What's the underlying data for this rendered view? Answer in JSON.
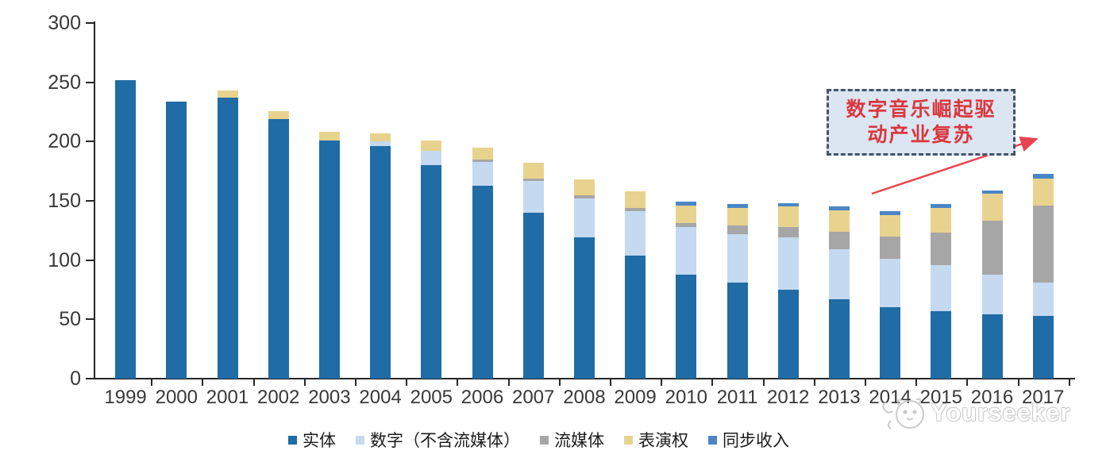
{
  "page": {
    "background": "#ffffff"
  },
  "chart_data": {
    "type": "bar",
    "stacked": true,
    "title": "",
    "xlabel": "",
    "ylabel": "",
    "categories": [
      "1999",
      "2000",
      "2001",
      "2002",
      "2003",
      "2004",
      "2005",
      "2006",
      "2007",
      "2008",
      "2009",
      "2010",
      "2011",
      "2012",
      "2013",
      "2014",
      "2015",
      "2016",
      "2017"
    ],
    "series": [
      {
        "name": "实体",
        "color": "#1f6ca6",
        "values": [
          252,
          234,
          237,
          219,
          201,
          196,
          180,
          163,
          140,
          119,
          104,
          88,
          81,
          75,
          67,
          60,
          57,
          54,
          53
        ]
      },
      {
        "name": "数字（不含流媒体）",
        "color": "#c5d9f0",
        "values": [
          0,
          0,
          0,
          0,
          0,
          4,
          12,
          20,
          27,
          33,
          37,
          40,
          41,
          44,
          42,
          41,
          39,
          34,
          28
        ]
      },
      {
        "name": "流媒体",
        "color": "#a6a6a6",
        "values": [
          0,
          0,
          0,
          0,
          0,
          0,
          0,
          2,
          2,
          3,
          3,
          3,
          7,
          9,
          15,
          19,
          27,
          45,
          65
        ]
      },
      {
        "name": "表演权",
        "color": "#e8d38e",
        "values": [
          0,
          0,
          6,
          7,
          7,
          7,
          9,
          10,
          13,
          13,
          14,
          15,
          15,
          17,
          18,
          18,
          21,
          23,
          23
        ]
      },
      {
        "name": "同步收入",
        "color": "#4a86c6",
        "values": [
          0,
          0,
          0,
          0,
          0,
          0,
          0,
          0,
          0,
          0,
          0,
          3,
          3,
          3,
          3,
          3,
          3,
          3,
          4
        ]
      }
    ],
    "ylim": [
      0,
      300
    ],
    "yticks": [
      0,
      50,
      100,
      150,
      200,
      250,
      300
    ],
    "grid": false,
    "legend_position": "bottom"
  },
  "annotation": {
    "line1": "数字音乐崛起驱",
    "line2": "动产业复苏",
    "text_color": "#d9383e",
    "box_fill": "#dce6f2",
    "border_color": "#44546a",
    "arrow_color": "#e8444e"
  },
  "watermark": {
    "text": "Yourseeker"
  }
}
